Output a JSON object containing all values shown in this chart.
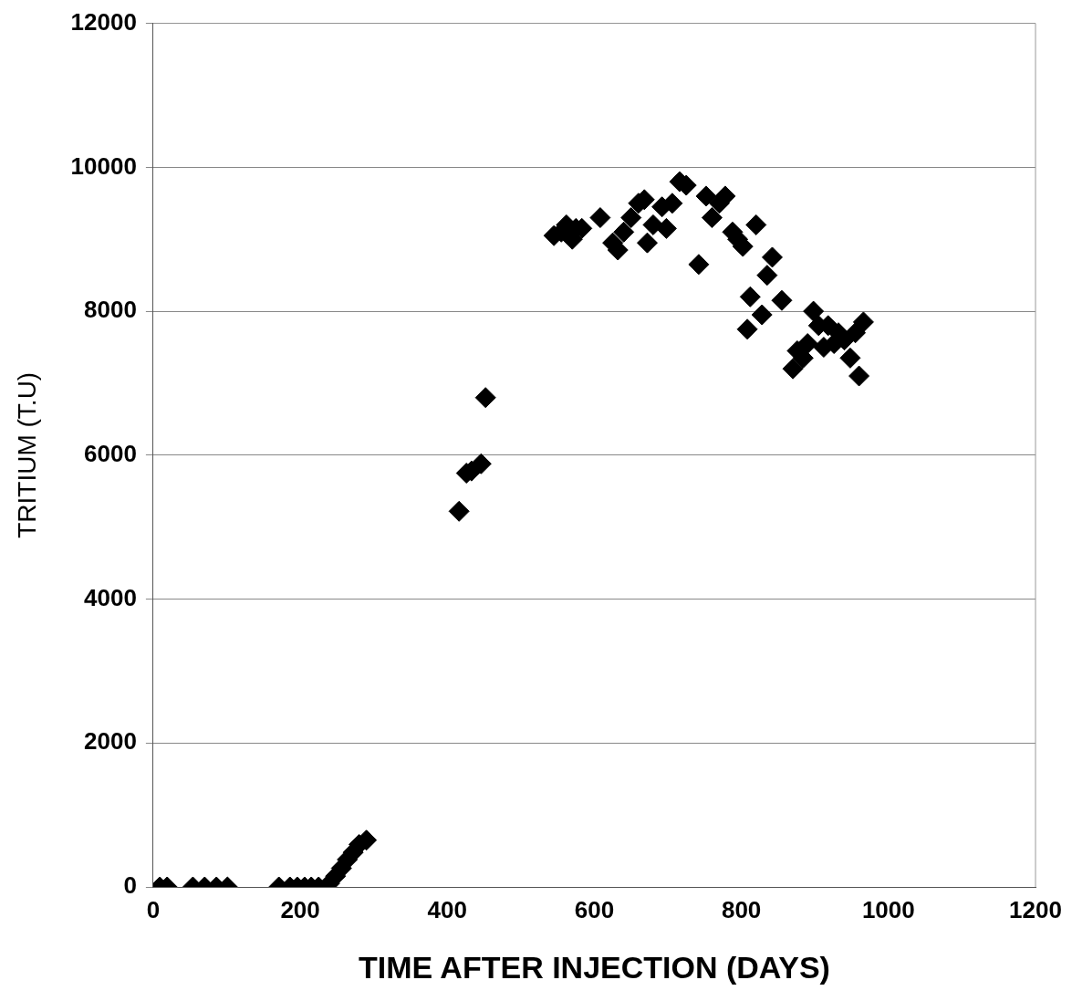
{
  "chart_data": {
    "type": "scatter",
    "xlabel": "TIME AFTER INJECTION (DAYS)",
    "ylabel": "TRITIUM (T.U)",
    "marker": "diamond",
    "grid": "y",
    "legend": false,
    "xlim": [
      0,
      1200
    ],
    "xticks": [
      0,
      200,
      400,
      600,
      800,
      1000,
      1200
    ],
    "ylim": [
      0,
      12000
    ],
    "yticks": [
      0,
      2000,
      4000,
      6000,
      8000,
      10000,
      12000
    ],
    "series": [
      {
        "color": "#000000",
        "x": [
          9,
          19,
          54,
          70,
          86,
          101,
          171,
          186,
          196,
          206,
          215,
          225,
          240,
          248,
          256,
          264,
          272,
          280,
          290,
          416,
          426,
          433,
          446,
          452,
          545,
          555,
          562,
          570,
          575,
          583,
          608,
          625,
          632,
          640,
          650,
          660,
          668,
          672,
          680,
          692,
          698,
          706,
          716,
          725,
          742,
          752,
          760,
          770,
          778,
          788,
          795,
          802,
          808,
          812,
          820,
          828,
          835,
          842,
          855,
          870,
          876,
          884,
          890,
          898,
          905,
          912,
          918,
          926,
          932,
          940,
          948,
          955,
          960,
          966
        ],
        "values": [
          0,
          0,
          0,
          0,
          0,
          0,
          0,
          0,
          0,
          0,
          0,
          0,
          50,
          150,
          260,
          380,
          480,
          590,
          650,
          5220,
          5750,
          5780,
          5880,
          6800,
          9050,
          9100,
          9200,
          9000,
          9150,
          9150,
          9300,
          8950,
          8850,
          9100,
          9300,
          9500,
          9550,
          8950,
          9200,
          9450,
          9150,
          9500,
          9800,
          9750,
          8650,
          9600,
          9300,
          9500,
          9600,
          9100,
          9000,
          8900,
          7750,
          8200,
          9200,
          7950,
          8500,
          8750,
          8150,
          7200,
          7450,
          7350,
          7550,
          8000,
          7800,
          7500,
          7800,
          7550,
          7700,
          7600,
          7350,
          7700,
          7100,
          7850
        ]
      }
    ]
  }
}
